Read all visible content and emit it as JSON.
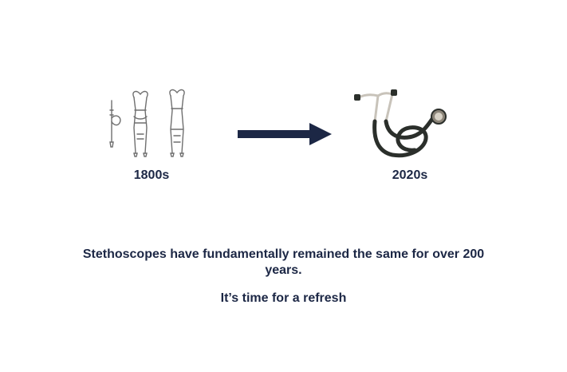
{
  "timeline": {
    "past_label": "1800s",
    "present_label": "2020s"
  },
  "message": {
    "statement": "Stethoscopes have fundamentally remained the same for over 200 years.",
    "tagline": "It’s time for a refresh"
  },
  "colors": {
    "text": "#1c2745",
    "arrow": "#1c2745",
    "tube": "#2b2f2b",
    "metal": "#c8c3ba"
  },
  "icons": {
    "past": "antique-stethoscopes-icon",
    "transition": "right-arrow-icon",
    "present": "modern-stethoscope-icon"
  }
}
